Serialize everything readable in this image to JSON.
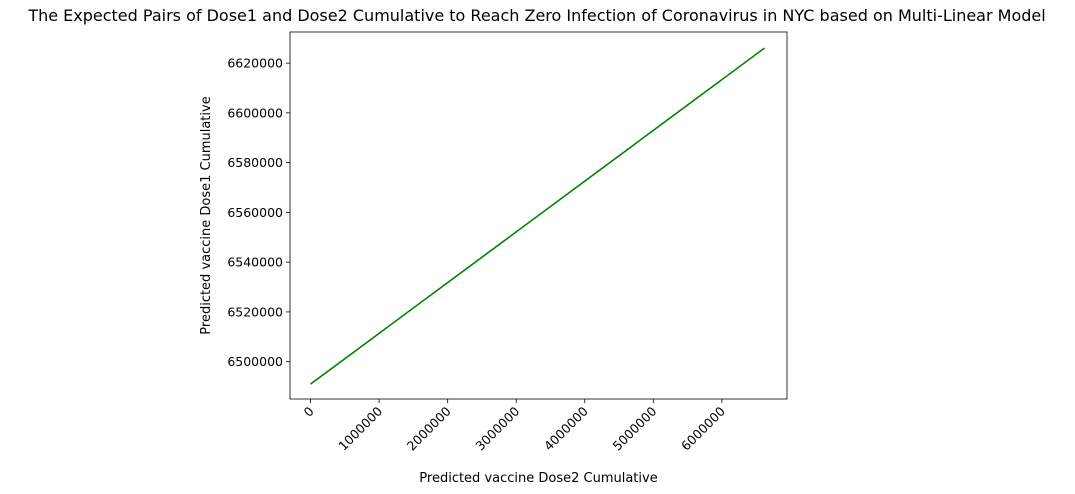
{
  "chart_data": {
    "type": "line",
    "title": "The Expected Pairs of Dose1 and Dose2 Cumulative to Reach Zero Infection of Coronavirus in NYC based on Multi-Linear Model",
    "xlabel": "Predicted vaccine Dose2 Cumulative",
    "ylabel": "Predicted vaccine Dose1 Cumulative",
    "xlim": [
      -300000,
      6950000
    ],
    "ylim": [
      6485000,
      6632500
    ],
    "xticks": [
      0,
      1000000,
      2000000,
      3000000,
      4000000,
      5000000,
      6000000
    ],
    "xtick_labels": [
      "0",
      "1000000",
      "2000000",
      "3000000",
      "4000000",
      "5000000",
      "6000000"
    ],
    "xtick_rotation": 45,
    "yticks": [
      6500000,
      6520000,
      6540000,
      6560000,
      6580000,
      6600000,
      6620000
    ],
    "ytick_labels": [
      "6500000",
      "6520000",
      "6540000",
      "6560000",
      "6580000",
      "6600000",
      "6620000"
    ],
    "grid": false,
    "series": [
      {
        "color": "#008000",
        "x": [
          0,
          6620000
        ],
        "y": [
          6491000,
          6626000
        ]
      }
    ]
  }
}
